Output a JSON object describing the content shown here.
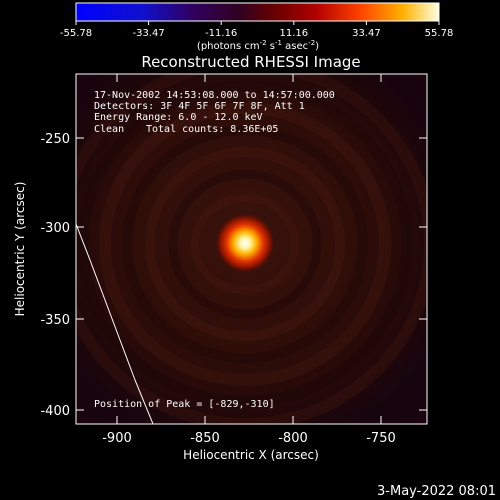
{
  "colorbar": {
    "ticks": [
      "-55.78",
      "-33.47",
      "-11.16",
      "11.16",
      "33.47",
      "55.78"
    ],
    "units_prefix": "(photons cm",
    "units_exp1": "-2",
    "units_mid": " s",
    "units_exp2": "-1",
    "units_mid2": " asec",
    "units_exp3": "-2",
    "units_suffix": ")"
  },
  "title": "Reconstructed RHESSI Image",
  "info": {
    "line1": "17-Nov-2002 14:53:08.000 to 14:57:00.000",
    "line2": "Detectors: 3F 4F 5F 6F 7F 8F, Att 1",
    "line3": "Energy Range: 6.0 - 12.0 keV",
    "line4_a": "Clean",
    "line4_b": "Total counts: 8.36E+05"
  },
  "peak_label": "Position of Peak = [-829,-310]",
  "axes": {
    "xlabel": "Heliocentric X (arcsec)",
    "ylabel": "Heliocentric Y (arcsec)",
    "xticks": [
      "-900",
      "-850",
      "-800",
      "-750"
    ],
    "yticks": [
      "-250",
      "-300",
      "-350",
      "-400"
    ]
  },
  "timestamp": "3-May-2022 08:01",
  "colors": {
    "background": "#000000",
    "image_base": "#2a0b06",
    "source_core": "#ffffff",
    "source_mid": "#ffb000",
    "source_outer": "#e03000"
  }
}
